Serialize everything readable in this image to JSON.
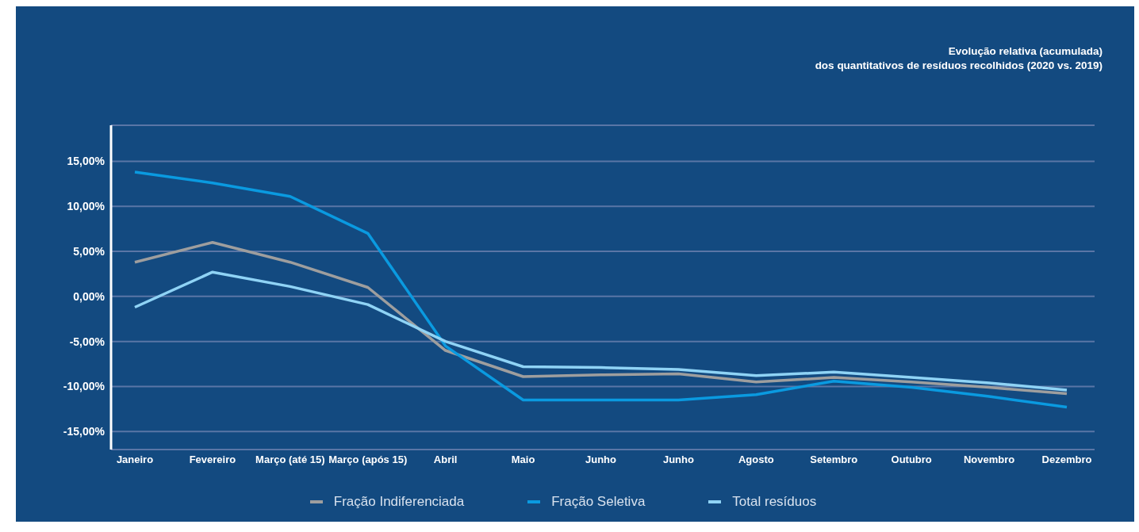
{
  "chart_data": {
    "type": "line",
    "title": "Evolução relativa (acumulada)",
    "subtitle": "dos quantitativos de resíduos recolhidos (2020 vs. 2019)",
    "categories": [
      "Janeiro",
      "Fevereiro",
      "Março (até 15)",
      "Março (após 15)",
      "Abril",
      "Maio",
      "Junho",
      "Junho",
      "Agosto",
      "Setembro",
      "Outubro",
      "Novembro",
      "Dezembro"
    ],
    "series": [
      {
        "name": "Fração Indiferenciada",
        "color": "#9e9e9e",
        "values": [
          3.8,
          6.0,
          3.8,
          1.0,
          -6.0,
          -8.9,
          -8.7,
          -8.6,
          -9.5,
          -9.0,
          -9.5,
          -10.1,
          -10.8
        ]
      },
      {
        "name": "Fração Seletiva",
        "color": "#0a9ae0",
        "values": [
          13.8,
          12.6,
          11.1,
          7.0,
          -5.5,
          -11.5,
          -11.5,
          -11.5,
          -10.9,
          -9.4,
          -10.1,
          -11.1,
          -12.3
        ]
      },
      {
        "name": "Total resíduos",
        "color": "#8fd3f5",
        "values": [
          -1.2,
          2.7,
          1.1,
          -0.9,
          -5.0,
          -7.8,
          -7.9,
          -8.1,
          -8.8,
          -8.4,
          -9.0,
          -9.6,
          -10.4
        ]
      }
    ],
    "ylim": [
      -17,
      19
    ],
    "yticks": [
      {
        "value": -15,
        "label": "-15,00%"
      },
      {
        "value": -10,
        "label": "-10,00%"
      },
      {
        "value": -5,
        "label": "-5,00%"
      },
      {
        "value": 0,
        "label": "0,00%"
      },
      {
        "value": 5,
        "label": "5,00%"
      },
      {
        "value": 10,
        "label": "10,00%"
      },
      {
        "value": 15,
        "label": "15,00%"
      }
    ],
    "grid": "y",
    "legend": "bottom",
    "marker": "none",
    "line_style": "solid"
  }
}
